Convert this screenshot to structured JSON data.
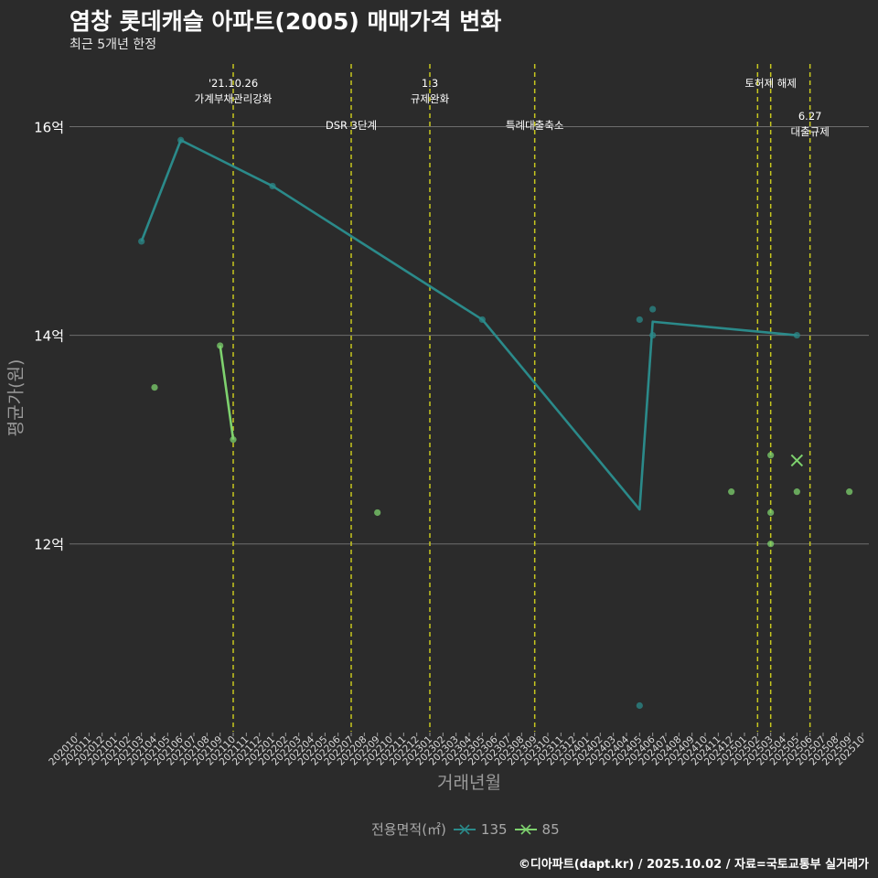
{
  "title": "염창 롯데캐슬 아파트(2005) 매매가격 변화",
  "subtitle": "최근 5개년 한정",
  "caption": "©디아파트(dapt.kr) / 2025.10.02 / 자료=국토교통부 실거래가",
  "colors": {
    "background": "#2b2b2b",
    "grid": "#6e6e6e",
    "vline": "#c8c81e",
    "s135": "#2b8a8a",
    "s85": "#7ed26e"
  },
  "chart_data": {
    "type": "line",
    "title": "염창 롯데캐슬 아파트(2005) 매매가격 변화",
    "subtitle": "최근 5개년 한정",
    "xlabel": "거래년월",
    "ylabel": "평균가(원)",
    "ylim": [
      10.2,
      16.6
    ],
    "y_ticks": [
      {
        "value": 12,
        "label": "12억"
      },
      {
        "value": 14,
        "label": "14억"
      },
      {
        "value": 16,
        "label": "16억"
      }
    ],
    "categories": [
      "202010",
      "202011",
      "202012",
      "202101",
      "202102",
      "202103",
      "202104",
      "202105",
      "202106",
      "202107",
      "202108",
      "202109",
      "202110",
      "202111",
      "202112",
      "202201",
      "202202",
      "202203",
      "202204",
      "202205",
      "202206",
      "202207",
      "202208",
      "202209",
      "202210",
      "202211",
      "202212",
      "202301",
      "202302",
      "202303",
      "202304",
      "202305",
      "202306",
      "202307",
      "202308",
      "202309",
      "202310",
      "202311",
      "202312",
      "202401",
      "202402",
      "202403",
      "202404",
      "202405",
      "202406",
      "202407",
      "202408",
      "202409",
      "202410",
      "202411",
      "202412",
      "202501",
      "202502",
      "202503",
      "202504",
      "202505",
      "202506",
      "202507",
      "202508",
      "202509",
      "202510"
    ],
    "legend_title": "전용면적(㎡)",
    "series": [
      {
        "name": "135",
        "color": "#2b8a8a",
        "line": [
          [
            "202103",
            14.9
          ],
          [
            "202106",
            15.87
          ],
          [
            "202201",
            15.43
          ],
          [
            "202305",
            14.15
          ],
          [
            "202405",
            12.33
          ],
          [
            "202406",
            14.13
          ],
          [
            "202505",
            14.0
          ]
        ],
        "points": [
          [
            "202103",
            14.9
          ],
          [
            "202106",
            15.87
          ],
          [
            "202201",
            15.43
          ],
          [
            "202305",
            14.15
          ],
          [
            "202405",
            14.15
          ],
          [
            "202405",
            10.45
          ],
          [
            "202406",
            14.25
          ],
          [
            "202406",
            14.0
          ],
          [
            "202505",
            14.0
          ]
        ]
      },
      {
        "name": "85",
        "color": "#7ed26e",
        "line": [
          [
            "202109",
            13.9
          ],
          [
            "202110",
            13.0
          ]
        ],
        "points": [
          [
            "202104",
            13.5
          ],
          [
            "202109",
            13.9
          ],
          [
            "202110",
            13.0
          ],
          [
            "202209",
            12.3
          ],
          [
            "202412",
            12.5
          ],
          [
            "202503",
            12.85
          ],
          [
            "202503",
            12.3
          ],
          [
            "202503",
            12.0
          ],
          [
            "202505",
            12.5
          ],
          [
            "202509",
            12.5
          ]
        ],
        "highlight": [
          [
            "202505",
            12.8
          ]
        ]
      }
    ],
    "events": [
      {
        "x": "202110",
        "label": "'21.10.26\n가계부채관리강화",
        "row": 1
      },
      {
        "x": "202207",
        "label": "DSR 3단계",
        "row": 2
      },
      {
        "x": "202301",
        "label": "1.3\n규제완화",
        "row": 1
      },
      {
        "x": "202309",
        "label": "특례대출축소",
        "row": 2
      },
      {
        "x": "202502",
        "label": "",
        "row": 0
      },
      {
        "x": "202503",
        "label": "토허제 해제",
        "row": 1
      },
      {
        "x": "202506",
        "label": "6.27\n대출규제",
        "row": 3
      }
    ]
  }
}
